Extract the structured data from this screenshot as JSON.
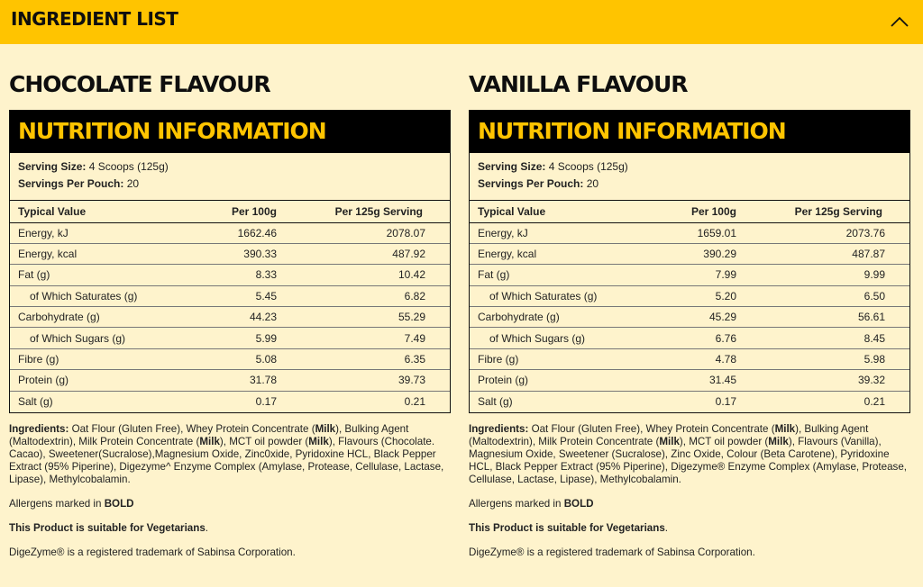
{
  "header": {
    "title": "INGREDIENT LIST",
    "toggle_icon": "chevron-up-icon"
  },
  "columns": [
    {
      "flavour_title": "CHOCOLATE FLAVOUR",
      "panel_title": "NUTRITION INFORMATION",
      "serving_size_label": "Serving Size:",
      "serving_size_value": "4 Scoops (125g)",
      "servings_label": "Servings Per Pouch:",
      "servings_value": "20",
      "table": {
        "headers": [
          "Typical Value",
          "Per 100g",
          "Per 125g Serving"
        ],
        "rows": [
          [
            "Energy, kJ",
            "1662.46",
            "2078.07"
          ],
          [
            "Energy, kcal",
            "390.33",
            "487.92"
          ],
          [
            "Fat (g)",
            "8.33",
            "10.42"
          ],
          [
            "of Which Saturates (g)",
            "5.45",
            "6.82"
          ],
          [
            "Carbohydrate (g)",
            "44.23",
            "55.29"
          ],
          [
            "of Which Sugars (g)",
            "5.99",
            "7.49"
          ],
          [
            "Fibre (g)",
            "5.08",
            "6.35"
          ],
          [
            "Protein (g)",
            "31.78",
            "39.73"
          ],
          [
            "Salt (g)",
            "0.17",
            "0.21"
          ]
        ]
      },
      "ingredients_parts": [
        [
          "Ingredients:",
          true
        ],
        [
          " Oat Flour (Gluten Free), Whey Protein Concentrate (",
          false
        ],
        [
          "Milk",
          true
        ],
        [
          "), Bulking Agent (Maltodextrin), Milk Protein Concentrate (",
          false
        ],
        [
          "Milk",
          true
        ],
        [
          "), MCT oil powder (",
          false
        ],
        [
          "Milk",
          true
        ],
        [
          "), Flavours (Chocolate. Cacao), Sweetener(Sucralose),Magnesium Oxide, Zinc0xide, Pyridoxine HCL, Black Pepper Extract (95% Piperine), Digezyme^ Enzyme Complex (Amylase, Protease, Cellulase, Lactase, Lipase), Methylcobalamin.",
          false
        ]
      ],
      "allergens_text": "Allergens marked in ",
      "allergens_bold": "BOLD",
      "vegetarian_text": "This Product is suitable for Vegetarians",
      "vegetarian_suffix": ".",
      "trademark": "DigeZyme® is a registered trademark of Sabinsa Corporation."
    },
    {
      "flavour_title": "VANILLA FLAVOUR",
      "panel_title": "NUTRITION INFORMATION",
      "serving_size_label": "Serving Size:",
      "serving_size_value": "4 Scoops (125g)",
      "servings_label": "Servings Per Pouch:",
      "servings_value": "20",
      "table": {
        "headers": [
          "Typical Value",
          "Per 100g",
          "Per 125g Serving"
        ],
        "rows": [
          [
            "Energy, kJ",
            "1659.01",
            "2073.76"
          ],
          [
            "Energy, kcal",
            "390.29",
            "487.87"
          ],
          [
            "Fat (g)",
            "7.99",
            "9.99"
          ],
          [
            "of Which Saturates (g)",
            "5.20",
            "6.50"
          ],
          [
            "Carbohydrate (g)",
            "45.29",
            "56.61"
          ],
          [
            "of Which Sugars (g)",
            "6.76",
            "8.45"
          ],
          [
            "Fibre (g)",
            "4.78",
            "5.98"
          ],
          [
            "Protein (g)",
            "31.45",
            "39.32"
          ],
          [
            "Salt (g)",
            "0.17",
            "0.21"
          ]
        ]
      },
      "ingredients_parts": [
        [
          "Ingredients:",
          true
        ],
        [
          " Oat Flour (Gluten Free), Whey Protein Concentrate (",
          false
        ],
        [
          "Milk",
          true
        ],
        [
          "), Bulking Agent (Maltodextrin), Milk Protein Concentrate (",
          false
        ],
        [
          "Milk",
          true
        ],
        [
          "), MCT oil powder (",
          false
        ],
        [
          "Milk",
          true
        ],
        [
          "), Flavours (Vanilla), Magnesium Oxide, Sweetener (Sucralose), Zinc Oxide, Colour (Beta Carotene), Pyridoxine HCL, Black Pepper Extract (95% Piperine), Digezyme® Enzyme Complex (Amylase, Protease, Cellulase, Lactase, Lipase), Methylcobalamin.",
          false
        ]
      ],
      "allergens_text": "Allergens marked in ",
      "allergens_bold": "BOLD",
      "vegetarian_text": "This Product is suitable for Vegetarians",
      "vegetarian_suffix": ".",
      "trademark": "DigeZyme® is a registered trademark of Sabinsa Corporation."
    }
  ]
}
